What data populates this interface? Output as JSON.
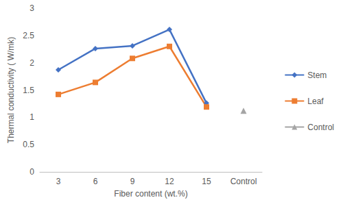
{
  "chart_data": {
    "type": "line",
    "x_label": "Fiber content (wt.%)",
    "y_label": "Thermal conductivity ( W/mk)",
    "categories": [
      "3",
      "6",
      "9",
      "12",
      "15",
      "Control"
    ],
    "series": [
      {
        "name": "Stem",
        "color": "#4472c4",
        "marker": "diamond",
        "line_style": "solid",
        "values": [
          1.87,
          2.26,
          2.31,
          2.61,
          1.26,
          null
        ]
      },
      {
        "name": "Leaf",
        "color": "#ed7d31",
        "marker": "square",
        "line_style": "solid",
        "values": [
          1.42,
          1.64,
          2.08,
          2.3,
          1.19,
          null
        ]
      },
      {
        "name": "Control",
        "color": "#a5a5a5",
        "marker": "triangle",
        "line_style": "solid",
        "values": [
          null,
          null,
          null,
          null,
          null,
          1.12
        ]
      }
    ],
    "ylim": [
      0,
      3
    ],
    "yticks": [
      0,
      0.5,
      1,
      1.5,
      2,
      2.5,
      3
    ],
    "grid": false,
    "legend": "right"
  }
}
